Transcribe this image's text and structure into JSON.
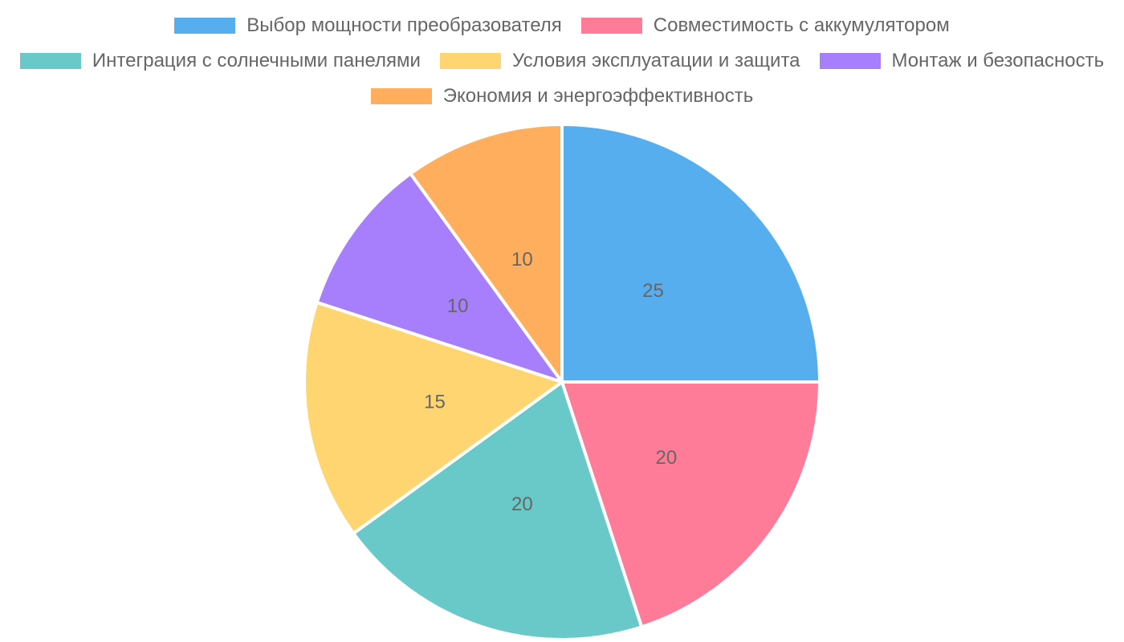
{
  "chart_data": {
    "type": "pie",
    "title": "",
    "categories": [
      "Выбор мощности преобразователя",
      "Совместимость с аккумулятором",
      "Интеграция с солнечными панелями",
      "Условия эксплуатации и защита",
      "Монтаж и безопасность",
      "Экономия и энергоэффективность"
    ],
    "values": [
      25,
      20,
      20,
      15,
      10,
      10
    ],
    "colors": [
      "#56aeee",
      "#ff7c98",
      "#68c9c8",
      "#ffd572",
      "#a77ffc",
      "#ffae5e"
    ],
    "legend_position": "top",
    "start_angle": "top, clockwise",
    "data_labels": [
      "25",
      "20",
      "20",
      "15",
      "10",
      "10"
    ]
  },
  "legend": {
    "items": [
      {
        "label": "Выбор мощности преобразователя",
        "color": "#56aeee"
      },
      {
        "label": "Совместимость с аккумулятором",
        "color": "#ff7c98"
      },
      {
        "label": "Интеграция с солнечными панелями",
        "color": "#68c9c8"
      },
      {
        "label": "Условия эксплуатации и защита",
        "color": "#ffd572"
      },
      {
        "label": "Монтаж и безопасность",
        "color": "#a77ffc"
      },
      {
        "label": "Экономия и энергоэффективность",
        "color": "#ffae5e"
      }
    ]
  }
}
